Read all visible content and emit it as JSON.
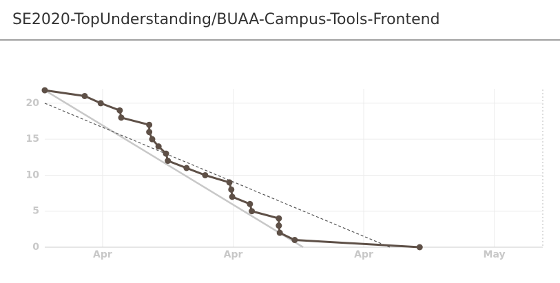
{
  "chart_data": {
    "type": "line",
    "title": "SE2020-TopUnderstanding/BUAA-Campus-Tools-Frontend",
    "xlim": [
      -3.1,
      23.6
    ],
    "ylim": [
      0,
      22
    ],
    "xticks": [
      {
        "value": 0,
        "label": "Apr"
      },
      {
        "value": 7,
        "label": "Apr"
      },
      {
        "value": 14,
        "label": "Apr"
      },
      {
        "value": 21,
        "label": "May"
      }
    ],
    "yticks": [
      0,
      5,
      10,
      15,
      20
    ],
    "grid": true,
    "series": [
      {
        "color": "#c8c8c8",
        "dash": false,
        "markers": false,
        "x": [
          -3.1,
          10.75
        ],
        "values": [
          21.8,
          0
        ]
      },
      {
        "color": "#555555",
        "dash": true,
        "markers": false,
        "x": [
          -3.1,
          15.4
        ],
        "values": [
          20,
          0
        ]
      },
      {
        "color": "#5e5047",
        "dash": false,
        "markers": true,
        "x": [
          -3.1,
          -0.96,
          -0.1,
          0.92,
          1.0,
          2.5,
          2.5,
          2.66,
          3.0,
          3.4,
          3.5,
          4.5,
          5.5,
          6.8,
          6.9,
          6.95,
          7.9,
          8.0,
          9.45,
          9.45,
          9.5,
          10.3,
          17.0
        ],
        "values": [
          21.8,
          21,
          20,
          19,
          18,
          17,
          16,
          15,
          14,
          13,
          12,
          11,
          10,
          9,
          8,
          7,
          6,
          5,
          4,
          3,
          2,
          1,
          0
        ]
      }
    ]
  }
}
